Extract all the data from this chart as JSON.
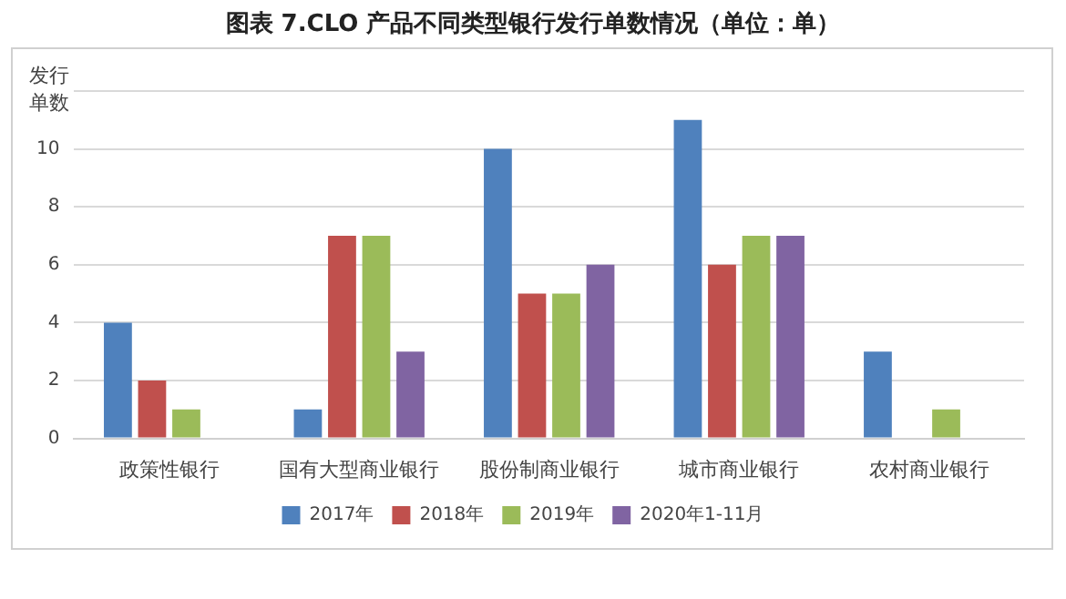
{
  "chart_data": {
    "type": "bar",
    "title": "图表 7.CLO 产品不同类型银行发行单数情况（单位：单）",
    "ylabel": "发行单数",
    "categories": [
      "政策性银行",
      "国有大型商业银行",
      "股份制商业银行",
      "城市商业银行",
      "农村商业银行"
    ],
    "series": [
      {
        "name": "2017年",
        "color": "#4f81bd",
        "values": [
          4,
          1,
          10,
          11,
          3
        ]
      },
      {
        "name": "2018年",
        "color": "#c0504d",
        "values": [
          2,
          7,
          5,
          6,
          null
        ]
      },
      {
        "name": "2019年",
        "color": "#9bbb59",
        "values": [
          1,
          7,
          5,
          7,
          1
        ]
      },
      {
        "name": "2020年1-11月",
        "color": "#8064a2",
        "values": [
          null,
          3,
          6,
          7,
          null
        ]
      }
    ],
    "ylim": [
      0,
      12
    ],
    "yticks": [
      0,
      2,
      4,
      6,
      8,
      10,
      {
        "value": 12,
        "label": null
      }
    ],
    "grid": "y",
    "legend": "bottom"
  }
}
